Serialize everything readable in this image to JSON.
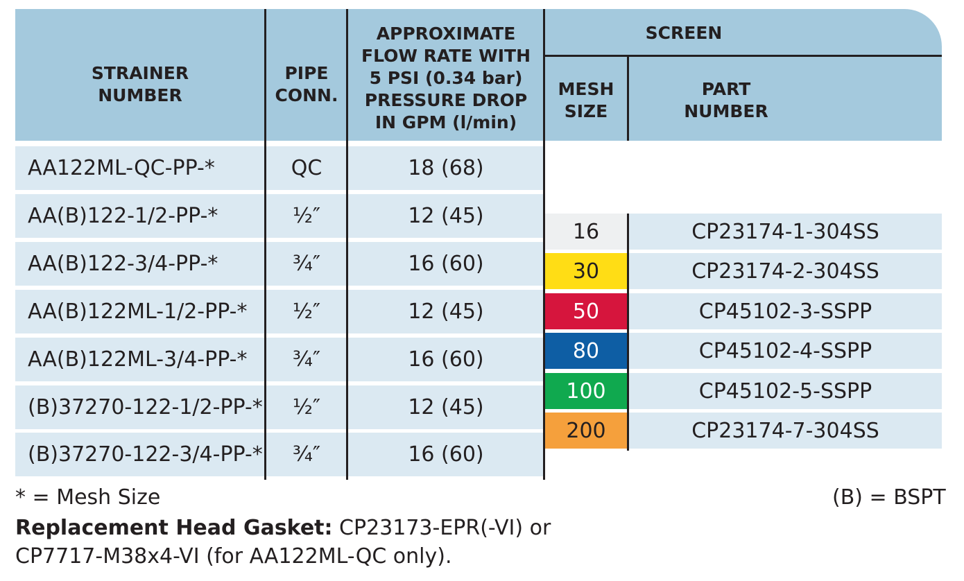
{
  "headers": {
    "strainer_number": "STRAINER\nNUMBER",
    "pipe_conn": "PIPE\nCONN.",
    "flow_rate": "APPROXIMATE\nFLOW RATE WITH\n5 PSI (0.34 bar)\nPRESSURE DROP\nIN GPM (l/min)",
    "screen": "SCREEN",
    "mesh_size": "MESH\nSIZE",
    "part_number": "PART\nNUMBER"
  },
  "strainers": [
    {
      "number": "AA122ML-QC-PP-*",
      "pipe": "QC",
      "flow": "18 (68)"
    },
    {
      "number": "AA(B)122-1/2-PP-*",
      "pipe": "½″",
      "flow": "12 (45)"
    },
    {
      "number": "AA(B)122-3/4-PP-*",
      "pipe": "¾″",
      "flow": "16 (60)"
    },
    {
      "number": "AA(B)122ML-1/2-PP-*",
      "pipe": "½″",
      "flow": "12 (45)"
    },
    {
      "number": "AA(B)122ML-3/4-PP-*",
      "pipe": "¾″",
      "flow": "16 (60)"
    },
    {
      "number": "(B)37270-122-1/2-PP-*",
      "pipe": "½″",
      "flow": "12 (45)"
    },
    {
      "number": "(B)37270-122-3/4-PP-*",
      "pipe": "¾″",
      "flow": "16 (60)"
    }
  ],
  "screens": [
    {
      "mesh": "16",
      "part": "CP23174-1-304SS",
      "color": "#eef0f1",
      "text_color": "#231f20"
    },
    {
      "mesh": "30",
      "part": "CP23174-2-304SS",
      "color": "#ffdd15",
      "text_color": "#231f20"
    },
    {
      "mesh": "50",
      "part": "CP45102-3-SSPP",
      "color": "#d6153d",
      "text_color": "#ffffff"
    },
    {
      "mesh": "80",
      "part": "CP45102-4-SSPP",
      "color": "#0e5ea4",
      "text_color": "#ffffff"
    },
    {
      "mesh": "100",
      "part": "CP45102-5-SSPP",
      "color": "#10a94f",
      "text_color": "#ffffff"
    },
    {
      "mesh": "200",
      "part": "CP23174-7-304SS",
      "color": "#f5a03c",
      "text_color": "#231f20"
    }
  ],
  "notes": {
    "mesh_note": "* = Mesh Size",
    "bspt_note": "(B) = BSPT",
    "gasket_label": "Replacement Head Gasket:",
    "gasket_text": " CP23173-EPR(-VI) or",
    "gasket_line2": "CP7717-M38x4-VI (for AA122ML-QC only)."
  },
  "colors": {
    "header_bg": "#a4c9dd",
    "row_bg": "#dbe9f2"
  }
}
